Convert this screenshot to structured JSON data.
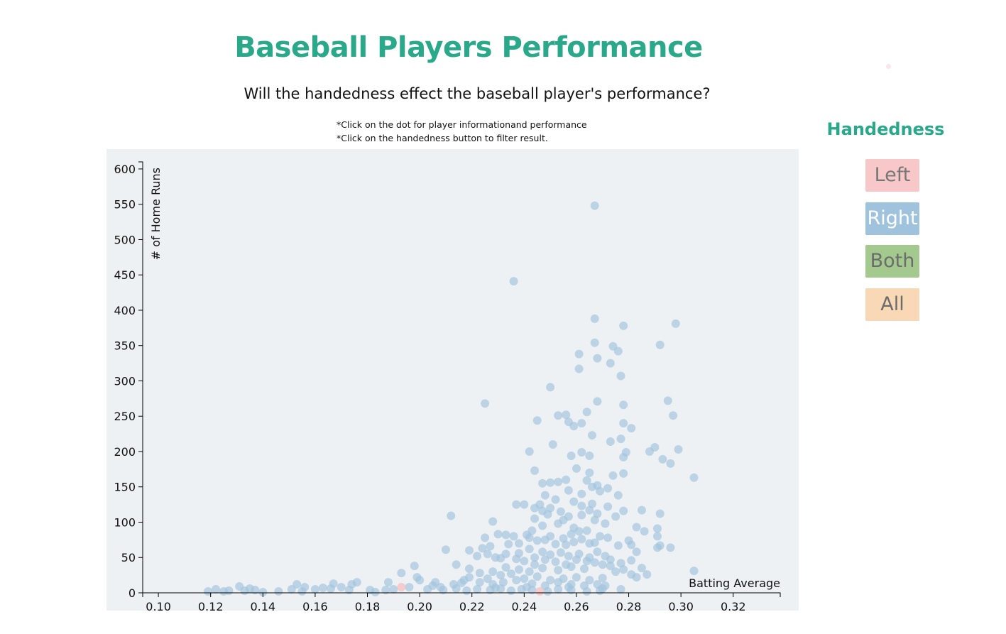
{
  "title": "Baseball Players Performance",
  "subtitle": "Will the handedness effect the baseball player's performance?",
  "notes": [
    "*Click on the dot for player informationand performance",
    "*Click on the handedness button to filter result."
  ],
  "legend": {
    "title": "Handedness",
    "buttons": [
      "Left",
      "Right",
      "Both",
      "All"
    ]
  },
  "colors": {
    "title": "#2aa88a",
    "right_points": "#9fc3dd",
    "left_points": "#f7b8b8",
    "plot_background": "#eef1f4",
    "left_button": "#f8c8c8",
    "right_button": "#9fc3dd",
    "both_button": "#a3c98e",
    "all_button": "#f9d8b6"
  },
  "chart_data": {
    "type": "scatter",
    "xlabel": "Batting Average",
    "ylabel": "# of Home Runs",
    "xlim": [
      0.094,
      0.338
    ],
    "ylim": [
      0,
      610
    ],
    "x_ticks": [
      "0.10",
      "0.12",
      "0.14",
      "0.16",
      "0.18",
      "0.20",
      "0.22",
      "0.24",
      "0.26",
      "0.28",
      "0.30",
      "0.32"
    ],
    "y_ticks": [
      "0",
      "50",
      "100",
      "150",
      "200",
      "250",
      "300",
      "350",
      "400",
      "450",
      "500",
      "550",
      "600"
    ],
    "grid": false,
    "legend": "right",
    "series": [
      {
        "name": "Right",
        "color": "#9fc3dd",
        "points": [
          [
            0.267,
            548
          ],
          [
            0.236,
            441
          ],
          [
            0.267,
            388
          ],
          [
            0.298,
            381
          ],
          [
            0.278,
            378
          ],
          [
            0.267,
            354
          ],
          [
            0.274,
            349
          ],
          [
            0.292,
            351
          ],
          [
            0.276,
            342
          ],
          [
            0.261,
            338
          ],
          [
            0.268,
            332
          ],
          [
            0.273,
            325
          ],
          [
            0.261,
            317
          ],
          [
            0.277,
            307
          ],
          [
            0.25,
            291
          ],
          [
            0.295,
            272
          ],
          [
            0.268,
            271
          ],
          [
            0.225,
            268
          ],
          [
            0.278,
            266
          ],
          [
            0.264,
            256
          ],
          [
            0.253,
            251
          ],
          [
            0.256,
            252
          ],
          [
            0.297,
            251
          ],
          [
            0.245,
            244
          ],
          [
            0.257,
            242
          ],
          [
            0.262,
            240
          ],
          [
            0.259,
            236
          ],
          [
            0.278,
            240
          ],
          [
            0.281,
            233
          ],
          [
            0.266,
            223
          ],
          [
            0.277,
            218
          ],
          [
            0.273,
            214
          ],
          [
            0.251,
            210
          ],
          [
            0.29,
            206
          ],
          [
            0.299,
            203
          ],
          [
            0.288,
            200
          ],
          [
            0.279,
            199
          ],
          [
            0.242,
            200
          ],
          [
            0.262,
            199
          ],
          [
            0.265,
            194
          ],
          [
            0.258,
            194
          ],
          [
            0.278,
            192
          ],
          [
            0.293,
            189
          ],
          [
            0.296,
            183
          ],
          [
            0.26,
            176
          ],
          [
            0.265,
            170
          ],
          [
            0.244,
            173
          ],
          [
            0.274,
            166
          ],
          [
            0.278,
            169
          ],
          [
            0.305,
            163
          ],
          [
            0.25,
            156
          ],
          [
            0.264,
            159
          ],
          [
            0.268,
            152
          ],
          [
            0.256,
            160
          ],
          [
            0.272,
            148
          ],
          [
            0.266,
            150
          ],
          [
            0.253,
            157
          ],
          [
            0.269,
            144
          ],
          [
            0.247,
            155
          ],
          [
            0.257,
            145
          ],
          [
            0.262,
            140
          ],
          [
            0.248,
            138
          ],
          [
            0.276,
            138
          ],
          [
            0.259,
            129
          ],
          [
            0.252,
            132
          ],
          [
            0.266,
            126
          ],
          [
            0.262,
            123
          ],
          [
            0.246,
            125
          ],
          [
            0.254,
            115
          ],
          [
            0.272,
            122
          ],
          [
            0.24,
            125
          ],
          [
            0.244,
            120
          ],
          [
            0.265,
            117
          ],
          [
            0.25,
            120
          ],
          [
            0.237,
            125
          ],
          [
            0.247,
            116
          ],
          [
            0.249,
            111
          ],
          [
            0.257,
            108
          ],
          [
            0.268,
            112
          ],
          [
            0.278,
            116
          ],
          [
            0.285,
            117
          ],
          [
            0.292,
            112
          ],
          [
            0.212,
            109
          ],
          [
            0.228,
            101
          ],
          [
            0.244,
            105
          ],
          [
            0.255,
            103
          ],
          [
            0.262,
            110
          ],
          [
            0.267,
            103
          ],
          [
            0.275,
            108
          ],
          [
            0.271,
            98
          ],
          [
            0.247,
            95
          ],
          [
            0.253,
            98
          ],
          [
            0.259,
            92
          ],
          [
            0.264,
            88
          ],
          [
            0.261,
            87
          ],
          [
            0.283,
            93
          ],
          [
            0.286,
            87
          ],
          [
            0.291,
            91
          ],
          [
            0.291,
            80
          ],
          [
            0.243,
            88
          ],
          [
            0.23,
            83
          ],
          [
            0.225,
            78
          ],
          [
            0.233,
            82
          ],
          [
            0.236,
            80
          ],
          [
            0.242,
            78
          ],
          [
            0.241,
            82
          ],
          [
            0.25,
            80
          ],
          [
            0.255,
            77
          ],
          [
            0.258,
            83
          ],
          [
            0.262,
            76
          ],
          [
            0.269,
            80
          ],
          [
            0.272,
            78
          ],
          [
            0.276,
            67
          ],
          [
            0.281,
            68
          ],
          [
            0.28,
            74
          ],
          [
            0.265,
            70
          ],
          [
            0.267,
            71
          ],
          [
            0.259,
            72
          ],
          [
            0.256,
            68
          ],
          [
            0.252,
            69
          ],
          [
            0.248,
            75
          ],
          [
            0.245,
            74
          ],
          [
            0.238,
            70
          ],
          [
            0.234,
            69
          ],
          [
            0.227,
            66
          ],
          [
            0.224,
            63
          ],
          [
            0.219,
            60
          ],
          [
            0.21,
            61
          ],
          [
            0.233,
            55
          ],
          [
            0.238,
            56
          ],
          [
            0.242,
            62
          ],
          [
            0.247,
            58
          ],
          [
            0.25,
            54
          ],
          [
            0.254,
            57
          ],
          [
            0.257,
            52
          ],
          [
            0.261,
            55
          ],
          [
            0.265,
            50
          ],
          [
            0.268,
            58
          ],
          [
            0.271,
            52
          ],
          [
            0.283,
            58
          ],
          [
            0.292,
            67
          ],
          [
            0.296,
            64
          ],
          [
            0.291,
            64
          ],
          [
            0.226,
            55
          ],
          [
            0.222,
            52
          ],
          [
            0.229,
            50
          ],
          [
            0.244,
            50
          ],
          [
            0.231,
            49
          ],
          [
            0.237,
            48
          ],
          [
            0.24,
            45
          ],
          [
            0.244,
            40
          ],
          [
            0.248,
            47
          ],
          [
            0.252,
            44
          ],
          [
            0.256,
            40
          ],
          [
            0.26,
            47
          ],
          [
            0.264,
            45
          ],
          [
            0.267,
            43
          ],
          [
            0.27,
            40
          ],
          [
            0.273,
            47
          ],
          [
            0.277,
            42
          ],
          [
            0.281,
            46
          ],
          [
            0.285,
            35
          ],
          [
            0.278,
            33
          ],
          [
            0.273,
            38
          ],
          [
            0.263,
            34
          ],
          [
            0.258,
            37
          ],
          [
            0.253,
            32
          ],
          [
            0.247,
            35
          ],
          [
            0.242,
            30
          ],
          [
            0.238,
            33
          ],
          [
            0.233,
            36
          ],
          [
            0.228,
            30
          ],
          [
            0.223,
            28
          ],
          [
            0.219,
            34
          ],
          [
            0.214,
            40
          ],
          [
            0.219,
            22
          ],
          [
            0.226,
            20
          ],
          [
            0.231,
            25
          ],
          [
            0.235,
            27
          ],
          [
            0.24,
            20
          ],
          [
            0.245,
            23
          ],
          [
            0.25,
            18
          ],
          [
            0.255,
            20
          ],
          [
            0.26,
            22
          ],
          [
            0.265,
            18
          ],
          [
            0.27,
            21
          ],
          [
            0.275,
            30
          ],
          [
            0.281,
            26
          ],
          [
            0.287,
            26
          ],
          [
            0.283,
            22
          ],
          [
            0.305,
            31
          ],
          [
            0.228,
            12
          ],
          [
            0.232,
            15
          ],
          [
            0.237,
            18
          ],
          [
            0.243,
            13
          ],
          [
            0.248,
            10
          ],
          [
            0.253,
            15
          ],
          [
            0.258,
            12
          ],
          [
            0.263,
            10
          ],
          [
            0.268,
            12
          ],
          [
            0.271,
            10
          ],
          [
            0.277,
            5
          ],
          [
            0.223,
            15
          ],
          [
            0.217,
            18
          ],
          [
            0.213,
            12
          ],
          [
            0.208,
            8
          ],
          [
            0.205,
            10
          ],
          [
            0.2,
            18
          ],
          [
            0.199,
            22
          ],
          [
            0.198,
            38
          ],
          [
            0.193,
            28
          ],
          [
            0.188,
            15
          ],
          [
            0.19,
            5
          ],
          [
            0.196,
            8
          ],
          [
            0.203,
            5
          ],
          [
            0.209,
            4
          ],
          [
            0.214,
            6
          ],
          [
            0.218,
            3
          ],
          [
            0.222,
            5
          ],
          [
            0.227,
            4
          ],
          [
            0.231,
            6
          ],
          [
            0.235,
            3
          ],
          [
            0.239,
            5
          ],
          [
            0.243,
            4
          ],
          [
            0.249,
            2
          ],
          [
            0.253,
            5
          ],
          [
            0.258,
            4
          ],
          [
            0.264,
            2
          ],
          [
            0.269,
            3
          ],
          [
            0.181,
            4
          ],
          [
            0.183,
            1
          ],
          [
            0.176,
            15
          ],
          [
            0.174,
            12
          ],
          [
            0.17,
            8
          ],
          [
            0.167,
            13
          ],
          [
            0.163,
            7
          ],
          [
            0.16,
            5
          ],
          [
            0.156,
            8
          ],
          [
            0.153,
            12
          ],
          [
            0.151,
            5
          ],
          [
            0.146,
            2
          ],
          [
            0.14,
            1
          ],
          [
            0.137,
            4
          ],
          [
            0.135,
            6
          ],
          [
            0.133,
            3
          ],
          [
            0.131,
            9
          ],
          [
            0.127,
            3
          ],
          [
            0.125,
            2
          ],
          [
            0.122,
            5
          ],
          [
            0.119,
            2
          ],
          [
            0.155,
            2
          ],
          [
            0.166,
            6
          ],
          [
            0.173,
            4
          ],
          [
            0.187,
            4
          ],
          [
            0.206,
            15
          ],
          [
            0.216,
            14
          ],
          [
            0.229,
            7
          ],
          [
            0.241,
            8
          ],
          [
            0.257,
            8
          ],
          [
            0.27,
            6
          ]
        ]
      },
      {
        "name": "Left",
        "color": "#f7b8b8",
        "points": [
          [
            0.193,
            8
          ],
          [
            0.246,
            2
          ]
        ]
      }
    ]
  }
}
